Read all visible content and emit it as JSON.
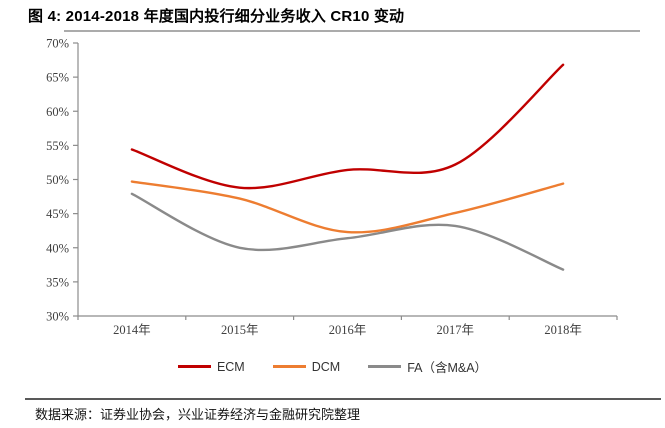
{
  "page": {
    "background": "#ffffff"
  },
  "header": {
    "title": "图 4: 2014-2018 年度国内投行细分业务收入 CR10 变动"
  },
  "footer": {
    "source_text": "数据来源：证券业协会，兴业证券经济与金融研究院整理"
  },
  "chart_data": {
    "type": "line",
    "title": "2014-2018 年度国内投行细分业务收入 CR10 变动",
    "categories": [
      "2014年",
      "2015年",
      "2016年",
      "2017年",
      "2018年"
    ],
    "series": [
      {
        "id": "ecm",
        "name": "ECM",
        "color": "#C00000",
        "values": [
          54.4,
          48.8,
          51.4,
          52.2,
          66.8
        ]
      },
      {
        "id": "dcm",
        "name": "DCM",
        "color": "#ED7D31",
        "values": [
          49.7,
          47.2,
          42.3,
          45.1,
          49.4
        ]
      },
      {
        "id": "fa",
        "name": "FA（含M&A）",
        "color": "#8A8A8A",
        "values": [
          47.9,
          40.0,
          41.4,
          43.2,
          36.8
        ]
      }
    ],
    "y_axis": {
      "min": 30,
      "max": 70,
      "step": 5,
      "unit": "%"
    },
    "ylim": [
      30,
      70
    ],
    "grid": false,
    "smooth": true,
    "legend_position": "bottom",
    "axis_color": "#8C8C8C",
    "tick_label_color": "#404040"
  }
}
